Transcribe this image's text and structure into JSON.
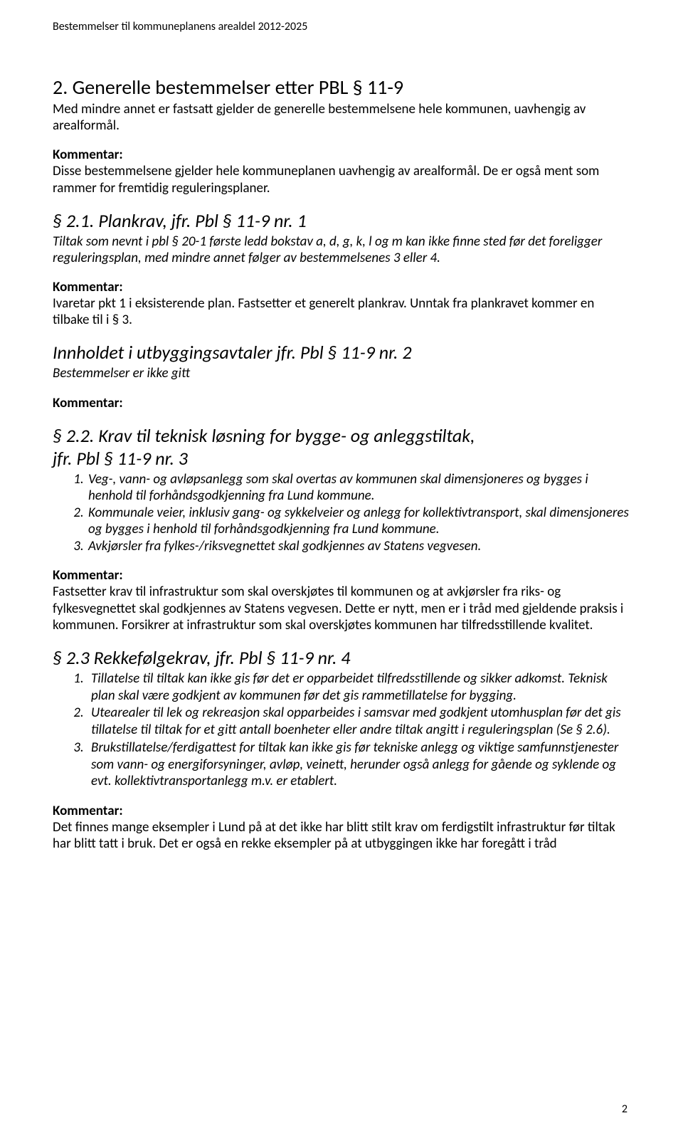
{
  "header": "Bestemmelser til kommuneplanens arealdel 2012-2025",
  "s2": {
    "title": "2. Generelle bestemmelser etter PBL § 11-9",
    "intro": "Med mindre annet er fastsatt gjelder de generelle bestemmelsene hele kommunen, uavhengig av arealformål.",
    "commentLabel": "Kommentar:",
    "comment": "Disse bestemmelsene gjelder hele kommuneplanen uavhengig av arealformål. De er også ment som rammer for fremtidig reguleringsplaner."
  },
  "s2_1": {
    "title": "§ 2.1. Plankrav, jfr. Pbl § 11-9 nr. 1",
    "body": "Tiltak som nevnt i pbl § 20-1 første ledd bokstav a, d, g, k, l og m kan ikke finne sted før det foreligger reguleringsplan, med mindre annet følger av bestemmelsenes 3 eller 4.",
    "commentLabel": "Kommentar:",
    "comment": "Ivaretar pkt 1 i eksisterende plan. Fastsetter et generelt plankrav. Unntak fra plankravet kommer en tilbake til i § 3."
  },
  "innhold": {
    "title": "Innholdet i utbyggingsavtaler jfr. Pbl § 11-9 nr. 2",
    "body": "Bestemmelser er ikke gitt",
    "commentLabel": "Kommentar:"
  },
  "s2_2": {
    "title1": "§ 2.2. Krav til teknisk løsning for bygge- og anleggstiltak,",
    "title2": "jfr. Pbl § 11-9 nr. 3",
    "items": [
      "Veg-, vann- og avløpsanlegg som skal overtas av kommunen skal dimensjoneres og bygges i henhold til forhåndsgodkjenning fra Lund kommune.",
      "Kommunale veier, inklusiv gang- og sykkelveier og anlegg for kollektivtransport, skal dimensjoneres og bygges i henhold til forhåndsgodkjenning fra Lund kommune.",
      "Avkjørsler fra fylkes-/riksvegnettet skal godkjennes av Statens vegvesen."
    ],
    "commentLabel": "Kommentar:",
    "comment": "Fastsetter krav til infrastruktur som skal overskjøtes til kommunen og at avkjørsler fra riks- og fylkesvegnettet skal godkjennes av Statens vegvesen. Dette er nytt, men er i tråd med gjeldende praksis i kommunen. Forsikrer at infrastruktur som skal overskjøtes kommunen har tilfredsstillende kvalitet."
  },
  "s2_3": {
    "title": "§ 2.3 Rekkefølgekrav, jfr. Pbl § 11-9 nr. 4",
    "items": [
      "Tillatelse til tiltak kan ikke gis før det er opparbeidet tilfredsstillende og sikker adkomst. Teknisk plan skal være godkjent av kommunen før det gis rammetillatelse for bygging.",
      "Utearealer til lek og rekreasjon skal opparbeides i samsvar med godkjent utomhusplan før det gis tillatelse til tiltak for et gitt antall boenheter eller andre tiltak angitt i reguleringsplan (Se § 2.6).",
      "Brukstillatelse/ferdigattest for tiltak kan ikke gis før tekniske anlegg og viktige samfunnstjenester som vann- og energiforsyninger, avløp, veinett, herunder også anlegg for gående og syklende og evt. kollektivtransportanlegg m.v. er etablert."
    ],
    "commentLabel": "Kommentar:",
    "comment": "Det finnes mange eksempler i Lund på at det ikke har blitt stilt krav om ferdigstilt infrastruktur før tiltak har blitt tatt i bruk. Det er også en rekke eksempler på at utbyggingen ikke har foregått i tråd"
  },
  "pageNumber": "2"
}
